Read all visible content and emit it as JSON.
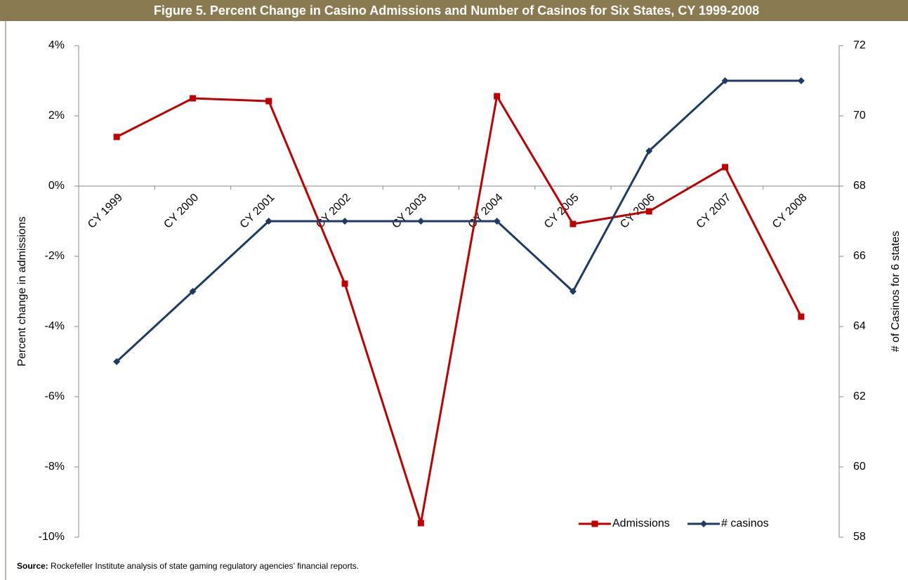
{
  "chart_data": {
    "type": "line",
    "title": "Figure 5. Percent Change in Casino Admissions and Number of Casinos for Six States, CY 1999-2008",
    "ylabel": "Percent change in admissions",
    "y2label": "# of Casinos for 6 states",
    "categories": [
      "CY 1999",
      "CY 2000",
      "CY 2001",
      "CY 2002",
      "CY 2003",
      "CY 2004",
      "CY 2005",
      "CY 2006",
      "CY 2007",
      "CY 2008"
    ],
    "series": [
      {
        "name": "Admissions",
        "color": "#c00000",
        "marker": "square",
        "values": [
          1.4,
          2.5,
          2.42,
          -2.78,
          -9.6,
          2.56,
          -1.08,
          -0.72,
          0.54,
          -3.72
        ]
      },
      {
        "name": "# casinos",
        "color": "#1f3b63",
        "marker": "diamond",
        "axis": "y2",
        "values": [
          63,
          65,
          67,
          67,
          67,
          67,
          65,
          69,
          71,
          71
        ]
      }
    ],
    "ylim": [
      -10,
      4
    ],
    "yticks": [
      {
        "value": -10,
        "label": "-10%"
      },
      {
        "value": -8,
        "label": "-8%"
      },
      {
        "value": -6,
        "label": "-6%"
      },
      {
        "value": -4,
        "label": "-4%"
      },
      {
        "value": -2,
        "label": "-2%"
      },
      {
        "value": 0,
        "label": "0%"
      },
      {
        "value": 2,
        "label": "2%"
      },
      {
        "value": 4,
        "label": "4%"
      }
    ],
    "y2lim": [
      58,
      72
    ],
    "y2ticks": [
      58,
      60,
      62,
      64,
      66,
      68,
      70,
      72
    ],
    "grid": false,
    "legend": "lower right",
    "source_label": "Source:",
    "source": "Rockefeller Institute analysis of state gaming regulatory agencies’ financial reports."
  }
}
